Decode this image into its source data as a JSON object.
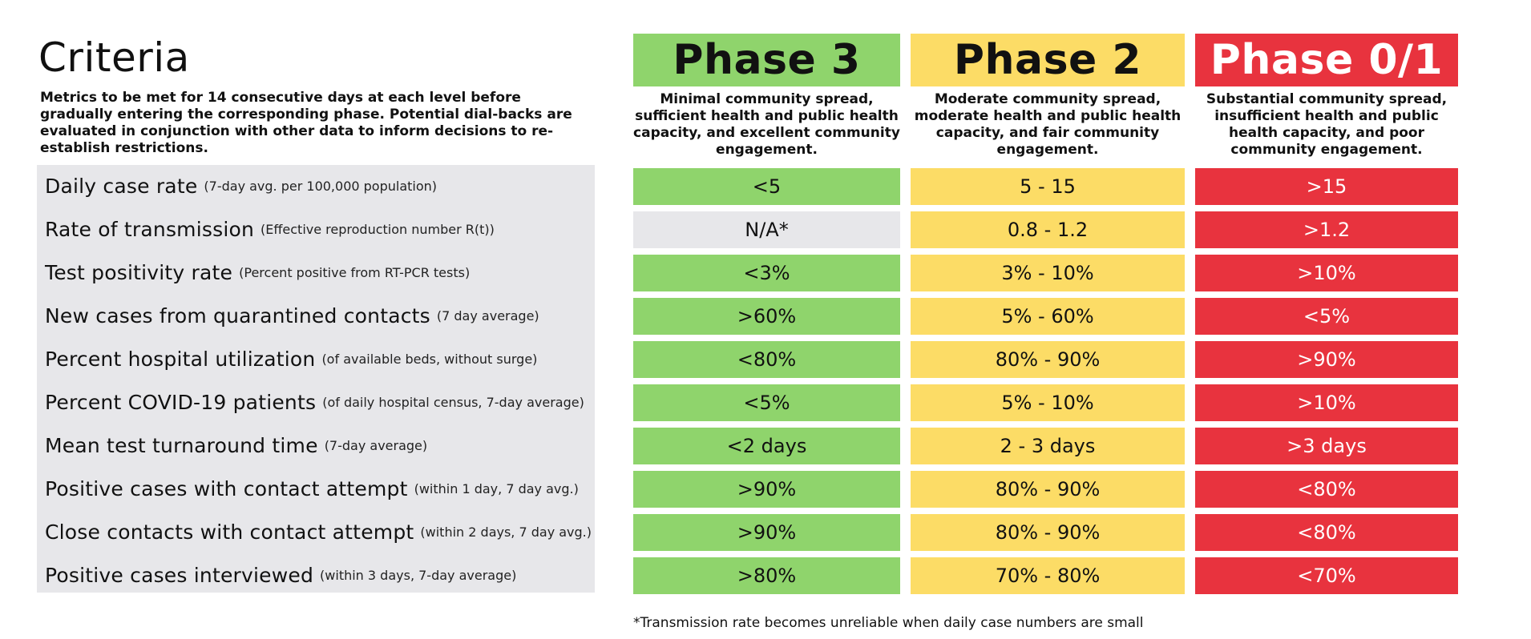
{
  "title": "Criteria",
  "subtitle": "Metrics to be met for 14 consecutive days at each level before gradually entering the corresponding phase. Potential dial-backs are evaluated in conjunction with other data to inform decisions to re-establish restrictions.",
  "colors": {
    "green": "#8fd46c",
    "yellow": "#fcdc66",
    "red": "#e8333e",
    "gray": "#e7e7ea"
  },
  "phases": [
    {
      "name": "Phase 3",
      "description": "Minimal community spread, sufficient health and public health capacity, and excellent community engagement."
    },
    {
      "name": "Phase 2",
      "description": "Moderate community spread, moderate health and public health capacity, and fair community engagement."
    },
    {
      "name": "Phase 0/1",
      "description": "Substantial community spread, insufficient health and public health capacity, and poor community engagement."
    }
  ],
  "rows": [
    {
      "label": "Daily case rate",
      "note": "(7-day avg. per 100,000 population)",
      "values": [
        "<5",
        "5 - 15",
        ">15"
      ]
    },
    {
      "label": "Rate of transmission",
      "note": "(Effective reproduction number R(t))",
      "values": [
        "N/A*",
        "0.8 - 1.2",
        ">1.2"
      ]
    },
    {
      "label": "Test positivity rate",
      "note": "(Percent positive from RT-PCR tests)",
      "values": [
        "<3%",
        "3% - 10%",
        ">10%"
      ]
    },
    {
      "label": "New cases from quarantined contacts",
      "note": "(7 day average)",
      "values": [
        ">60%",
        "5% - 60%",
        "<5%"
      ]
    },
    {
      "label": "Percent hospital utilization",
      "note": "(of available beds, without surge)",
      "values": [
        "<80%",
        "80% - 90%",
        ">90%"
      ]
    },
    {
      "label": "Percent COVID-19 patients",
      "note": "(of daily hospital census, 7-day average)",
      "values": [
        "<5%",
        "5% - 10%",
        ">10%"
      ]
    },
    {
      "label": "Mean test turnaround time",
      "note": "(7-day average)",
      "values": [
        "<2 days",
        "2 - 3 days",
        ">3 days"
      ]
    },
    {
      "label": "Positive cases with contact attempt",
      "note": "(within 1 day, 7 day avg.)",
      "values": [
        ">90%",
        "80% - 90%",
        "<80%"
      ]
    },
    {
      "label": "Close contacts with contact attempt",
      "note": "(within 2 days, 7 day avg.)",
      "values": [
        ">90%",
        "80% - 90%",
        "<80%"
      ]
    },
    {
      "label": "Positive cases interviewed",
      "note": "(within 3 days, 7-day average)",
      "values": [
        ">80%",
        "70% - 80%",
        "<70%"
      ]
    }
  ],
  "footnote": "*Transmission rate becomes unreliable when daily case numbers are small"
}
